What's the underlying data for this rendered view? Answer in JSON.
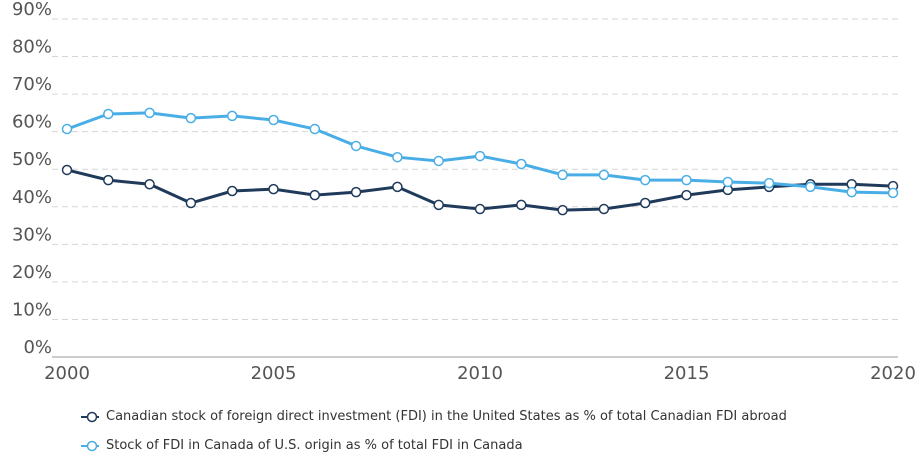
{
  "chart_data": {
    "type": "line",
    "x": [
      2000,
      2001,
      2002,
      2003,
      2004,
      2005,
      2006,
      2007,
      2008,
      2009,
      2010,
      2011,
      2012,
      2013,
      2014,
      2015,
      2016,
      2017,
      2018,
      2019,
      2020
    ],
    "series": [
      {
        "name": "Canadian stock of foreign direct investment (FDI) in the United States as % of total Canadian FDI abroad",
        "color": "#1f3a5a",
        "values": [
          49.8,
          47.1,
          46,
          41,
          44.2,
          44.7,
          43.1,
          43.9,
          45.3,
          40.5,
          39.4,
          40.5,
          39.1,
          39.4,
          41,
          43.1,
          44.5,
          45.3,
          46,
          46,
          45.5
        ]
      },
      {
        "name": "Stock of FDI in Canada of U.S. origin as % of total FDI in Canada",
        "color": "#4aaee6",
        "values": [
          60.7,
          64.7,
          65,
          63.6,
          64.2,
          63.1,
          60.7,
          56.2,
          53.2,
          52.2,
          53.5,
          51.4,
          48.5,
          48.5,
          47.1,
          47.1,
          46.6,
          46.3,
          45.3,
          43.9,
          43.7
        ]
      }
    ],
    "xlim": [
      2000,
      2020
    ],
    "xticks": [
      2000,
      2005,
      2010,
      2015,
      2020
    ],
    "ylim": [
      0,
      90
    ],
    "yticks": [
      {
        "value": 0,
        "label": "0%"
      },
      {
        "value": 10,
        "label": "10%"
      },
      {
        "value": 20,
        "label": "20%"
      },
      {
        "value": 30,
        "label": "30%"
      },
      {
        "value": 40,
        "label": "40%"
      },
      {
        "value": 50,
        "label": "50%"
      },
      {
        "value": 60,
        "label": "60%"
      },
      {
        "value": 70,
        "label": "70%"
      },
      {
        "value": 80,
        "label": "80%"
      },
      {
        "value": 90,
        "label": "90%"
      }
    ],
    "grid": true
  }
}
